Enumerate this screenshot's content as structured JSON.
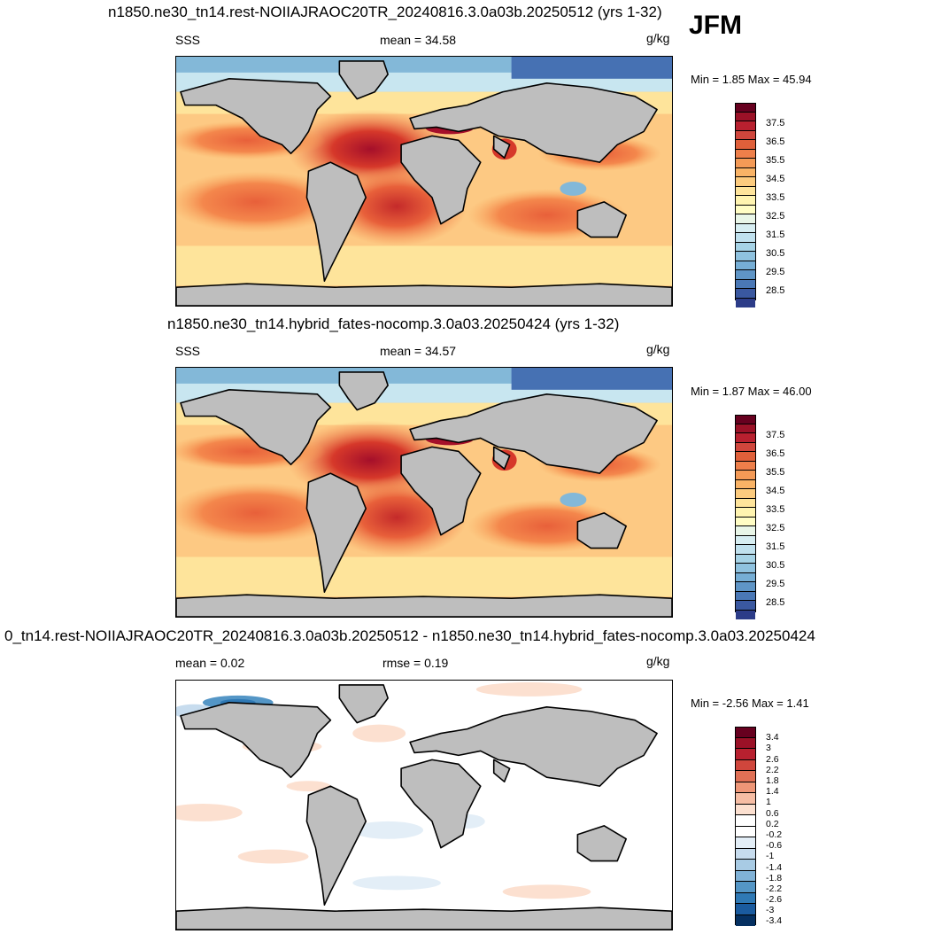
{
  "season": "JFM",
  "panels": [
    {
      "title": "n1850.ne30_tn14.rest-NOIIAJRAOC20TR_20240816.3.0a03b.20250512 (yrs 1-32)",
      "left_label": "SSS",
      "center_label": "mean =  34.58",
      "units": "g/kg",
      "minmax": "Min =   1.85 Max =  45.94",
      "colorbar_ticks": [
        "37.5",
        "36.5",
        "35.5",
        "34.5",
        "33.5",
        "32.5",
        "31.5",
        "30.5",
        "29.5",
        "28.5"
      ]
    },
    {
      "title": "n1850.ne30_tn14.hybrid_fates-nocomp.3.0a03.20250424 (yrs 1-32)",
      "left_label": "SSS",
      "center_label": "mean =  34.57",
      "units": "g/kg",
      "minmax": "Min =   1.87 Max =  46.00",
      "colorbar_ticks": [
        "37.5",
        "36.5",
        "35.5",
        "34.5",
        "33.5",
        "32.5",
        "31.5",
        "30.5",
        "29.5",
        "28.5"
      ]
    },
    {
      "title": "0_tn14.rest-NOIIAJRAOC20TR_20240816.3.0a03b.20250512 - n1850.ne30_tn14.hybrid_fates-nocomp.3.0a03.20250424",
      "left_label": "mean =   0.02",
      "center_label": "rmse =   0.19",
      "units": "g/kg",
      "minmax": "Min =  -2.56 Max =   1.41",
      "colorbar_ticks": [
        "3.4",
        "3",
        "2.6",
        "2.2",
        "1.8",
        "1.4",
        "1",
        "0.6",
        "0.2",
        "-0.2",
        "-0.6",
        "-1",
        "-1.4",
        "-1.8",
        "-2.2",
        "-2.6",
        "-3",
        "-3.4"
      ]
    }
  ],
  "colors": {
    "land": "#bebebe",
    "sss_scale": [
      "#67001f",
      "#b2182b",
      "#d6382a",
      "#e8603a",
      "#f4874c",
      "#f9a95f",
      "#fdc983",
      "#fee49b",
      "#fffdc4",
      "#e9f6e8",
      "#c8e6f0",
      "#a6d3e6",
      "#83b8d8",
      "#5f95c6",
      "#4671b3",
      "#2c3c88"
    ],
    "diff_scale": [
      "#67001f",
      "#9b1127",
      "#b8202f",
      "#d0463c",
      "#e07055",
      "#ee9677",
      "#f6bda4",
      "#fce0d0",
      "#ffffff",
      "#ffffff",
      "#e3eef7",
      "#c7dcee",
      "#a8cbe4",
      "#80b2d7",
      "#5496c6",
      "#2f79b5",
      "#1a5b9f",
      "#053061"
    ]
  }
}
